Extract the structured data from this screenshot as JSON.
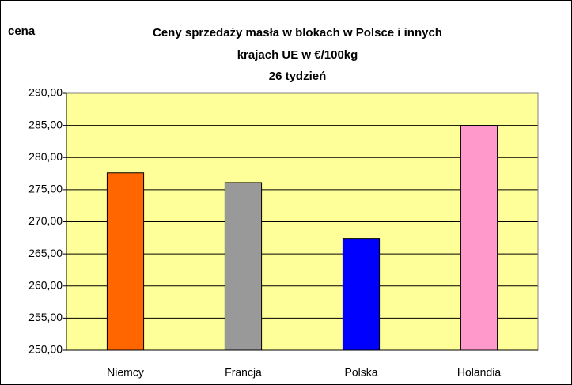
{
  "chart_data": {
    "type": "bar",
    "title": [
      "Ceny sprzedaży masła w blokach w Polsce i  innych",
      "krajach UE w €/100kg",
      "26 tydzień"
    ],
    "y_label": "cena",
    "categories": [
      "Niemcy",
      "Francja",
      "Polska",
      "Holandia"
    ],
    "values": [
      277.6,
      276.1,
      267.4,
      285.0
    ],
    "colors": [
      "#ff6600",
      "#999999",
      "#0000ff",
      "#ff99cc"
    ],
    "ylim": [
      250,
      290
    ],
    "yticks": [
      {
        "value": 250,
        "label": "250,00"
      },
      {
        "value": 255,
        "label": "255,00"
      },
      {
        "value": 260,
        "label": "260,00"
      },
      {
        "value": 265,
        "label": "265,00"
      },
      {
        "value": 270,
        "label": "270,00"
      },
      {
        "value": 275,
        "label": "275,00"
      },
      {
        "value": 280,
        "label": "280,00"
      },
      {
        "value": 285,
        "label": "285,00"
      },
      {
        "value": 290,
        "label": "290,00"
      }
    ],
    "grid": true
  }
}
